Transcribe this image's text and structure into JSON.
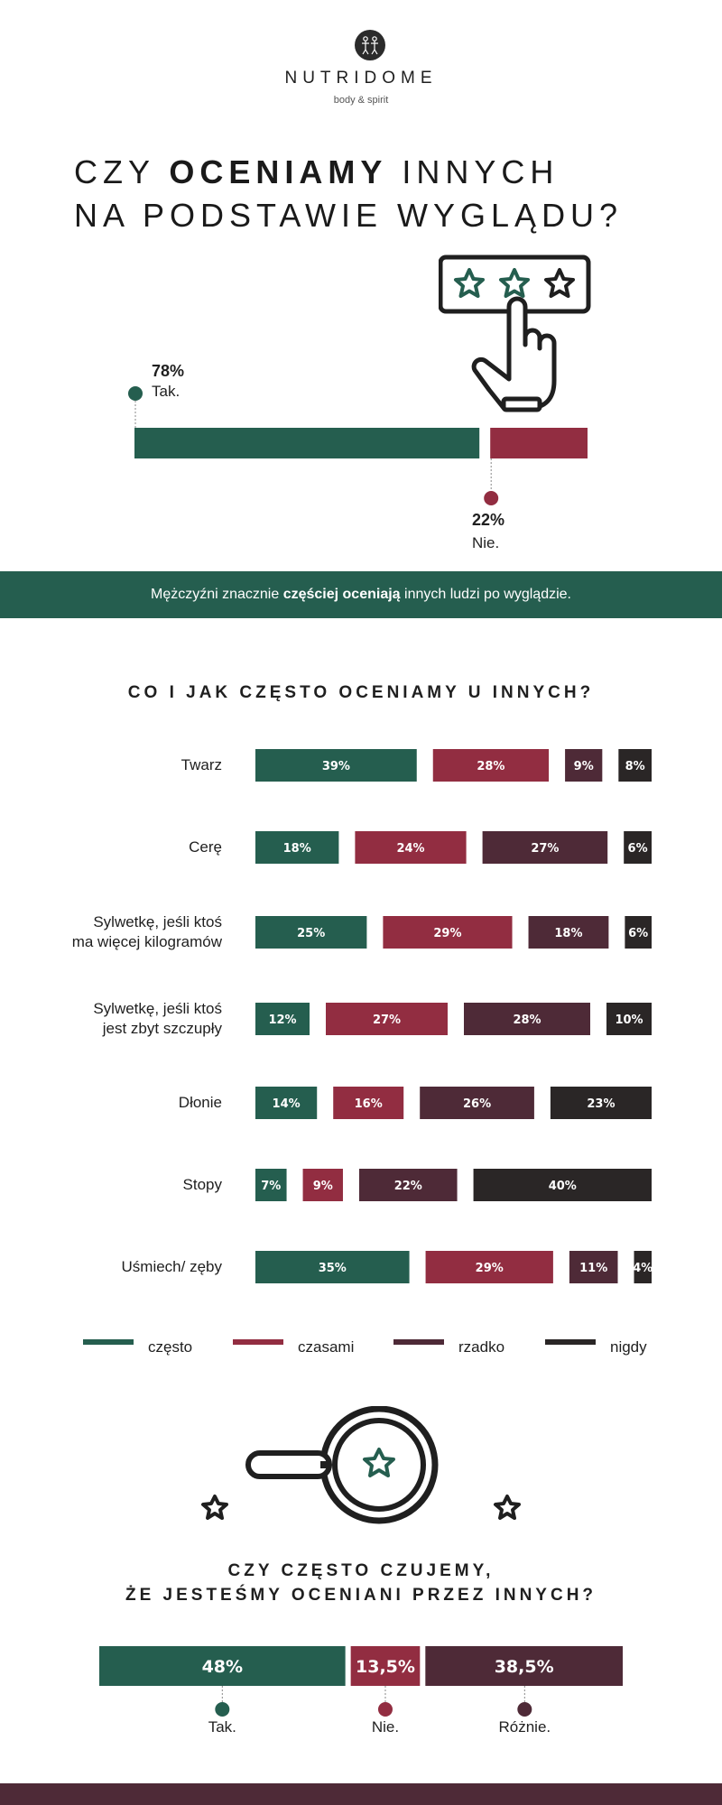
{
  "brand": {
    "name": "NUTRIDOME",
    "tagline": "body & spirit"
  },
  "headline": {
    "line1_pre": "CZY ",
    "line1_bold": "OCENIAMY",
    "line1_post": " INNYCH",
    "line2": "NA PODSTAWIE WYGLĄDU?"
  },
  "colors": {
    "green": "#255e4f",
    "red": "#922d41",
    "plum": "#4e2a37",
    "black": "#2a2626"
  },
  "icons": [
    "rating-stars-icon",
    "hand-pointer-icon",
    "magnifier-star-icon",
    "star-icon"
  ],
  "q1": {
    "yes": {
      "value": "78%",
      "label": "Tak."
    },
    "no": {
      "value": "22%",
      "label": "Nie."
    }
  },
  "banner": {
    "pre": "Mężczyźni znacznie ",
    "bold": "częściej oceniają",
    "post": " innych ludzi po wyglądzie."
  },
  "q2_title": "CO I JAK CZĘSTO OCENIAMY U INNYCH?",
  "legend": [
    "często",
    "czasami",
    "rzadko",
    "nigdy"
  ],
  "q3_title_line1": "CZY CZĘSTO CZUJEMY,",
  "q3_title_line2": "ŻE JESTEŚMY OCENIANI PRZEZ INNYCH?",
  "chart_data": [
    {
      "type": "bar",
      "categories": [
        "Tak.",
        "Nie."
      ],
      "values": [
        78,
        22
      ],
      "value_labels": [
        "78%",
        "22%"
      ]
    },
    {
      "type": "bar",
      "title": "CO I JAK CZĘSTO OCENIAMY U INNYCH?",
      "categories": [
        "Twarz",
        "Cerę",
        "Sylwetkę, jeśli ktoś ma więcej kilogramów",
        "Sylwetkę, jeśli ktoś jest zbyt szczupły",
        "Dłonie",
        "Stopy",
        "Uśmiech/ zęby"
      ],
      "category_lines": [
        [
          "Twarz"
        ],
        [
          "Cerę"
        ],
        [
          "Sylwetkę, jeśli ktoś",
          "ma więcej kilogramów"
        ],
        [
          "Sylwetkę, jeśli ktoś",
          "jest zbyt szczupły"
        ],
        [
          "Dłonie"
        ],
        [
          "Stopy"
        ],
        [
          "Uśmiech/ zęby"
        ]
      ],
      "series": [
        {
          "name": "często",
          "values": [
            39,
            18,
            25,
            12,
            14,
            7,
            35
          ]
        },
        {
          "name": "czasami",
          "values": [
            28,
            24,
            29,
            27,
            16,
            9,
            29
          ]
        },
        {
          "name": "rzadko",
          "values": [
            9,
            27,
            18,
            28,
            26,
            22,
            11
          ]
        },
        {
          "name": "nigdy",
          "values": [
            8,
            6,
            6,
            10,
            23,
            40,
            4
          ]
        }
      ],
      "legend_position": "bottom"
    },
    {
      "type": "bar",
      "title": "CZY CZĘSTO CZUJEMY, ŻE JESTEŚMY OCENIANI PRZEZ INNYCH?",
      "categories": [
        "Tak.",
        "Nie.",
        "Różnie."
      ],
      "values": [
        48,
        13.5,
        38.5
      ],
      "value_labels": [
        "48%",
        "13,5%",
        "38,5%"
      ]
    }
  ]
}
